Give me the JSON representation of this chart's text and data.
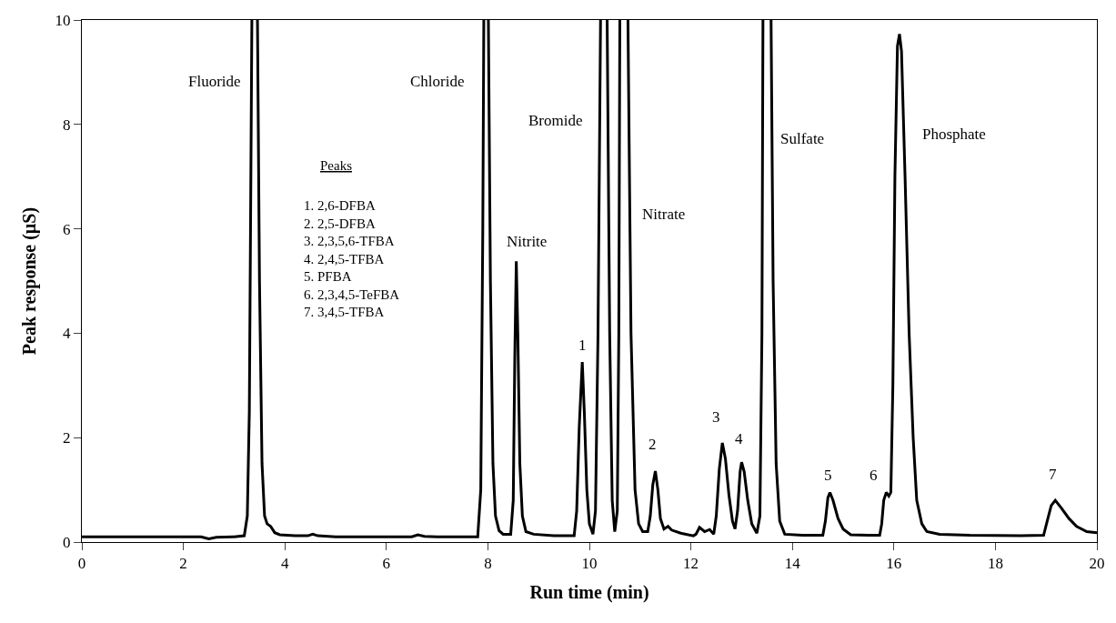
{
  "chart_data": {
    "type": "line",
    "xlabel": "Run time (min)",
    "ylabel": "Peak response (µS)",
    "xlim": [
      0,
      20
    ],
    "xticks": [
      0,
      2,
      4,
      6,
      8,
      10,
      12,
      14,
      16,
      18,
      20
    ],
    "ylim": [
      0,
      10
    ],
    "yticks": [
      0,
      2,
      4,
      6,
      8,
      10
    ],
    "line_style": "solid",
    "series": [
      {
        "color": "#000000",
        "x": [
          0,
          1,
          2,
          2.35,
          2.5,
          2.65,
          3.0,
          3.2,
          3.26,
          3.3,
          3.33,
          3.35,
          3.4,
          3.46,
          3.5,
          3.55,
          3.6,
          3.65,
          3.72,
          3.8,
          3.9,
          4.2,
          4.45,
          4.55,
          4.65,
          5.0,
          6.0,
          6.5,
          6.62,
          6.75,
          7.0,
          7.5,
          7.8,
          7.86,
          7.9,
          7.92,
          7.96,
          8.01,
          8.05,
          8.1,
          8.15,
          8.22,
          8.3,
          8.45,
          8.5,
          8.53,
          8.56,
          8.59,
          8.63,
          8.68,
          8.75,
          8.9,
          9.3,
          9.7,
          9.75,
          9.8,
          9.86,
          9.9,
          9.95,
          10.0,
          10.07,
          10.12,
          10.17,
          10.22,
          10.28,
          10.35,
          10.4,
          10.45,
          10.5,
          10.55,
          10.58,
          10.6,
          10.68,
          10.76,
          10.82,
          10.9,
          10.97,
          11.05,
          11.15,
          11.2,
          11.25,
          11.3,
          11.35,
          11.4,
          11.47,
          11.55,
          11.62,
          11.8,
          12.05,
          12.1,
          12.17,
          12.27,
          12.37,
          12.45,
          12.5,
          12.56,
          12.62,
          12.68,
          12.75,
          12.82,
          12.87,
          12.92,
          12.97,
          13.0,
          13.05,
          13.12,
          13.2,
          13.3,
          13.36,
          13.4,
          13.42,
          13.5,
          13.58,
          13.62,
          13.68,
          13.75,
          13.85,
          14.2,
          14.6,
          14.65,
          14.7,
          14.74,
          14.8,
          14.9,
          15.0,
          15.15,
          15.5,
          15.72,
          15.76,
          15.8,
          15.85,
          15.9,
          15.94,
          15.98,
          16.02,
          16.07,
          16.11,
          16.15,
          16.22,
          16.3,
          16.38,
          16.45,
          16.55,
          16.65,
          16.9,
          17.5,
          18.5,
          18.95,
          19.02,
          19.1,
          19.18,
          19.3,
          19.45,
          19.6,
          19.8,
          20
        ],
        "values": [
          0.1,
          0.1,
          0.1,
          0.1,
          0.06,
          0.09,
          0.1,
          0.12,
          0.5,
          2.5,
          7,
          10,
          null,
          10,
          5,
          1.5,
          0.5,
          0.35,
          0.3,
          0.18,
          0.14,
          0.12,
          0.12,
          0.15,
          0.12,
          0.1,
          0.1,
          0.1,
          0.14,
          0.11,
          0.1,
          0.1,
          0.1,
          1,
          6,
          10,
          null,
          10,
          5,
          1.5,
          0.5,
          0.22,
          0.15,
          0.15,
          0.8,
          3.5,
          5.38,
          4,
          1.5,
          0.5,
          0.2,
          0.15,
          0.12,
          0.12,
          0.6,
          2.2,
          3.45,
          2.5,
          1,
          0.35,
          0.15,
          0.6,
          4,
          10,
          null,
          10,
          4,
          0.8,
          0.2,
          0.6,
          4,
          10,
          null,
          10,
          4,
          1,
          0.35,
          0.2,
          0.2,
          0.5,
          1.1,
          1.36,
          1.0,
          0.45,
          0.25,
          0.3,
          0.23,
          0.17,
          0.12,
          0.15,
          0.28,
          0.2,
          0.24,
          0.15,
          0.5,
          1.4,
          1.9,
          1.6,
          0.9,
          0.4,
          0.25,
          0.6,
          1.35,
          1.53,
          1.35,
          0.8,
          0.35,
          0.17,
          0.5,
          4,
          10,
          null,
          10,
          5,
          1.5,
          0.4,
          0.15,
          0.13,
          0.13,
          0.4,
          0.85,
          0.95,
          0.8,
          0.45,
          0.25,
          0.14,
          0.13,
          0.13,
          0.35,
          0.8,
          0.95,
          0.88,
          0.95,
          3,
          7,
          9.5,
          9.73,
          9.4,
          7,
          4,
          2,
          0.8,
          0.35,
          0.2,
          0.15,
          0.13,
          0.12,
          0.13,
          0.4,
          0.7,
          0.8,
          0.65,
          0.45,
          0.3,
          0.2,
          0.18
        ]
      }
    ],
    "annotations": [
      "Fluoride",
      "Chloride",
      "Bromide",
      "Nitrite",
      "Nitrate",
      "Sulfate",
      "Phosphate",
      "1",
      "2",
      "3",
      "4",
      "5",
      "6",
      "7",
      "Peaks",
      "1. 2,6-DFBA",
      "2. 2,5-DFBA",
      "3. 2,3,5,6-TFBA",
      "4. 2,4,5-TFBA",
      "5. PFBA",
      "6. 2,3,4,5-TeFBA",
      "7. 3,4,5-TFBA"
    ]
  }
}
